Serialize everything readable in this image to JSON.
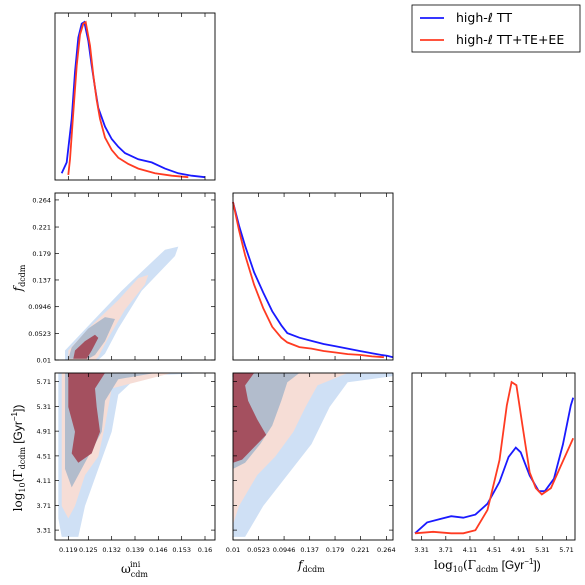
{
  "colors": {
    "tt": "#1a1aff",
    "ttteee": "#ff3b22",
    "tt_fill_outer": "#cfe0f5",
    "tt_fill_inner": "#9bb0c8",
    "ttteee_fill_outer": "#f6ddd6",
    "ttteee_fill_inner": "#a4505f"
  },
  "legend": {
    "placement": "top-right",
    "entries": [
      {
        "label": "high-ℓ TT",
        "color": "#1a1aff"
      },
      {
        "label": "high-ℓ TT+TE+EE",
        "color": "#ff3b22"
      }
    ]
  },
  "axes_labels": {
    "omega_main": "ω",
    "omega_sub": "cdm",
    "omega_sup": "ini",
    "f_main": "f",
    "f_sub": "dcdm",
    "gamma_prefix": "log",
    "gamma_base": "10",
    "gamma_open": "(Γ",
    "gamma_sub": "dcdm",
    "gamma_unit": " [Gyr",
    "gamma_exp": "−1",
    "gamma_close": "])"
  },
  "ticks": {
    "omega": [
      "0.119",
      "0.125",
      "0.132",
      "0.139",
      "0.146",
      "0.153",
      "0.16"
    ],
    "f": [
      "0.01",
      "0.0523",
      "0.0946",
      "0.137",
      "0.179",
      "0.221",
      "0.264"
    ],
    "gamma": [
      "3.31",
      "3.71",
      "4.11",
      "4.51",
      "4.91",
      "5.31",
      "5.71"
    ]
  },
  "chart_data": {
    "type": "triangle-corner-plot",
    "parameters": [
      "omega_cdm_ini",
      "f_dcdm",
      "log10_Gamma_dcdm"
    ],
    "ranges": {
      "omega": [
        0.115,
        0.163
      ],
      "f": [
        0.01,
        0.275
      ],
      "gamma": [
        3.15,
        5.85
      ]
    },
    "grid": false,
    "series": [
      {
        "name": "high-ℓ TT",
        "omega_pdf": [
          [
            0.117,
            0.03
          ],
          [
            0.1185,
            0.1
          ],
          [
            0.12,
            0.38
          ],
          [
            0.121,
            0.68
          ],
          [
            0.122,
            0.9
          ],
          [
            0.123,
            0.99
          ],
          [
            0.1238,
            1.0
          ],
          [
            0.125,
            0.88
          ],
          [
            0.126,
            0.72
          ],
          [
            0.127,
            0.58
          ],
          [
            0.128,
            0.45
          ],
          [
            0.13,
            0.33
          ],
          [
            0.132,
            0.25
          ],
          [
            0.134,
            0.2
          ],
          [
            0.136,
            0.16
          ],
          [
            0.14,
            0.12
          ],
          [
            0.144,
            0.1
          ],
          [
            0.148,
            0.06
          ],
          [
            0.152,
            0.03
          ],
          [
            0.156,
            0.015
          ],
          [
            0.16,
            0.005
          ]
        ],
        "f_pdf": [
          [
            0.01,
            1.0
          ],
          [
            0.02,
            0.85
          ],
          [
            0.03,
            0.72
          ],
          [
            0.045,
            0.55
          ],
          [
            0.06,
            0.42
          ],
          [
            0.075,
            0.3
          ],
          [
            0.09,
            0.21
          ],
          [
            0.1,
            0.16
          ],
          [
            0.12,
            0.13
          ],
          [
            0.14,
            0.11
          ],
          [
            0.16,
            0.09
          ],
          [
            0.18,
            0.075
          ],
          [
            0.2,
            0.06
          ],
          [
            0.22,
            0.045
          ],
          [
            0.24,
            0.03
          ],
          [
            0.255,
            0.02
          ],
          [
            0.265,
            0.015
          ],
          [
            0.275,
            0.005
          ]
        ],
        "gamma_pdf": [
          [
            3.2,
            0.03
          ],
          [
            3.4,
            0.1
          ],
          [
            3.6,
            0.12
          ],
          [
            3.8,
            0.14
          ],
          [
            4.0,
            0.13
          ],
          [
            4.2,
            0.15
          ],
          [
            4.4,
            0.22
          ],
          [
            4.6,
            0.36
          ],
          [
            4.75,
            0.52
          ],
          [
            4.87,
            0.58
          ],
          [
            4.95,
            0.55
          ],
          [
            5.1,
            0.4
          ],
          [
            5.25,
            0.3
          ],
          [
            5.35,
            0.3
          ],
          [
            5.5,
            0.38
          ],
          [
            5.65,
            0.6
          ],
          [
            5.78,
            0.85
          ],
          [
            5.82,
            0.9
          ]
        ]
      },
      {
        "name": "high-ℓ TT+TE+EE",
        "omega_pdf": [
          [
            0.119,
            0.02
          ],
          [
            0.1195,
            0.12
          ],
          [
            0.1205,
            0.42
          ],
          [
            0.1215,
            0.72
          ],
          [
            0.1225,
            0.92
          ],
          [
            0.1235,
            0.99
          ],
          [
            0.1242,
            1.0
          ],
          [
            0.1255,
            0.85
          ],
          [
            0.1265,
            0.66
          ],
          [
            0.1275,
            0.5
          ],
          [
            0.1285,
            0.38
          ],
          [
            0.13,
            0.26
          ],
          [
            0.132,
            0.18
          ],
          [
            0.134,
            0.13
          ],
          [
            0.137,
            0.09
          ],
          [
            0.14,
            0.06
          ],
          [
            0.145,
            0.03
          ],
          [
            0.15,
            0.015
          ],
          [
            0.155,
            0.005
          ]
        ],
        "f_pdf": [
          [
            0.01,
            1.0
          ],
          [
            0.02,
            0.82
          ],
          [
            0.03,
            0.66
          ],
          [
            0.045,
            0.47
          ],
          [
            0.06,
            0.32
          ],
          [
            0.075,
            0.2
          ],
          [
            0.09,
            0.13
          ],
          [
            0.1,
            0.1
          ],
          [
            0.12,
            0.07
          ],
          [
            0.14,
            0.06
          ],
          [
            0.16,
            0.045
          ],
          [
            0.18,
            0.035
          ],
          [
            0.2,
            0.025
          ],
          [
            0.22,
            0.02
          ],
          [
            0.24,
            0.01
          ],
          [
            0.26,
            0.005
          ]
        ],
        "gamma_pdf": [
          [
            3.2,
            0.03
          ],
          [
            3.5,
            0.04
          ],
          [
            3.8,
            0.03
          ],
          [
            4.0,
            0.03
          ],
          [
            4.2,
            0.05
          ],
          [
            4.4,
            0.18
          ],
          [
            4.6,
            0.5
          ],
          [
            4.72,
            0.85
          ],
          [
            4.8,
            1.0
          ],
          [
            4.88,
            0.98
          ],
          [
            4.98,
            0.72
          ],
          [
            5.1,
            0.42
          ],
          [
            5.2,
            0.32
          ],
          [
            5.3,
            0.28
          ],
          [
            5.45,
            0.32
          ],
          [
            5.6,
            0.45
          ],
          [
            5.75,
            0.58
          ],
          [
            5.82,
            0.64
          ]
        ]
      }
    ]
  }
}
